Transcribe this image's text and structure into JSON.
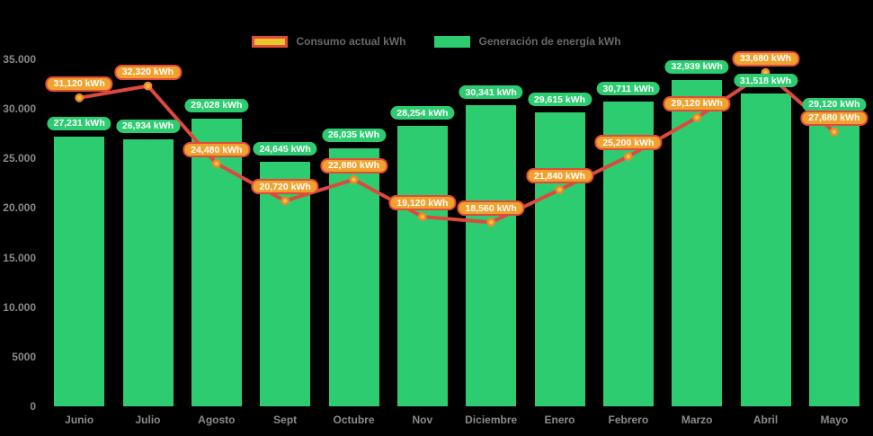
{
  "colors": {
    "background": "#000000",
    "bar_green": "#2ecc71",
    "line_red": "#dc4a3d",
    "point_fill": "#f5c52e",
    "point_border": "#ef8634",
    "consumo_pill_bg": "#f0a22e",
    "consumo_pill_border": "#e04b3b",
    "legend_swatch_yellow": "#e9c62c",
    "axis_text": "#8a8a8a",
    "legend_text": "#696969"
  },
  "chart_data": {
    "type": "bar",
    "title": "",
    "unit": "kWh",
    "categories": [
      "Junio",
      "Julio",
      "Agosto",
      "Sept",
      "Octubre",
      "Nov",
      "Diciembre",
      "Enero",
      "Febrero",
      "Marzo",
      "Abril",
      "Mayo"
    ],
    "series": [
      {
        "name": "Consumo actual kWh",
        "type": "line",
        "values": [
          31120,
          32320,
          24480,
          20720,
          22880,
          19120,
          18560,
          21840,
          25200,
          29120,
          33680,
          27680
        ]
      },
      {
        "name": "Generación de energía kWh",
        "type": "bar",
        "values": [
          27231,
          26934,
          29028,
          24645,
          26035,
          28254,
          30341,
          29615,
          30711,
          32939,
          31518,
          29120
        ]
      }
    ],
    "ylim": [
      0,
      35000
    ],
    "y_ticks": [
      {
        "value": 35000,
        "label": "35.000"
      },
      {
        "value": 30000,
        "label": "30.000"
      },
      {
        "value": 25000,
        "label": "25.000"
      },
      {
        "value": 20000,
        "label": "20.000"
      },
      {
        "value": 15000,
        "label": "15.000"
      },
      {
        "value": 10000,
        "label": "10.000"
      },
      {
        "value": 5000,
        "label": "5000"
      },
      {
        "value": 0,
        "label": "0"
      }
    ],
    "grid": false,
    "legend_position": "top",
    "value_labels": "all points labeled as pills, e.g. 27,231 kWh"
  }
}
